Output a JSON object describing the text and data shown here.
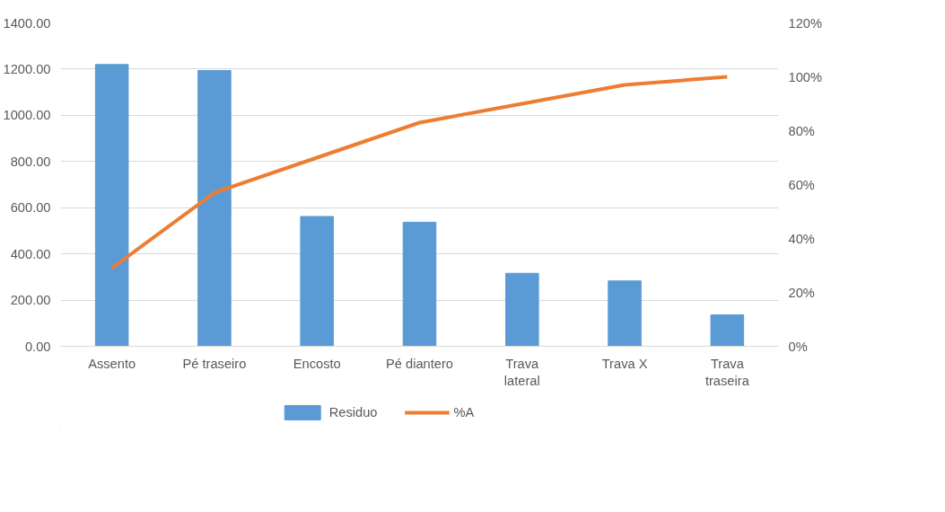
{
  "chart_data": {
    "type": "bar",
    "categories": [
      "Assento",
      "Pé traseiro",
      "Encosto",
      "Pé diantero",
      "Trava\nlateral",
      "Trava X",
      "Trava\ntraseira"
    ],
    "series": [
      {
        "name": "Residuo",
        "color": "#5b9bd5",
        "values": [
          1220,
          1194,
          562,
          537,
          316,
          283,
          136
        ]
      },
      {
        "name": "%A",
        "type": "line",
        "axis": "y2",
        "color": "#ed7d31",
        "values": [
          29,
          57,
          70,
          83,
          90,
          97,
          100
        ]
      }
    ],
    "ylim": [
      0,
      1400
    ],
    "yticks": [
      {
        "value": 0,
        "label": "0.00"
      },
      {
        "value": 200,
        "label": "200.00"
      },
      {
        "value": 400,
        "label": "400.00"
      },
      {
        "value": 600,
        "label": "600.00"
      },
      {
        "value": 800,
        "label": "800.00"
      },
      {
        "value": 1000,
        "label": "1000.00"
      },
      {
        "value": 1200,
        "label": "1200.00"
      },
      {
        "value": 1400,
        "label": "1400.00"
      }
    ],
    "y2lim": [
      0,
      120
    ],
    "y2ticks": [
      {
        "value": 0,
        "label": "0%"
      },
      {
        "value": 20,
        "label": "20%"
      },
      {
        "value": 40,
        "label": "40%"
      },
      {
        "value": 60,
        "label": "60%"
      },
      {
        "value": 80,
        "label": "80%"
      },
      {
        "value": 100,
        "label": "100%"
      },
      {
        "value": 120,
        "label": "120%"
      }
    ],
    "grid": "y",
    "legend": "bottom",
    "marker": "none"
  }
}
